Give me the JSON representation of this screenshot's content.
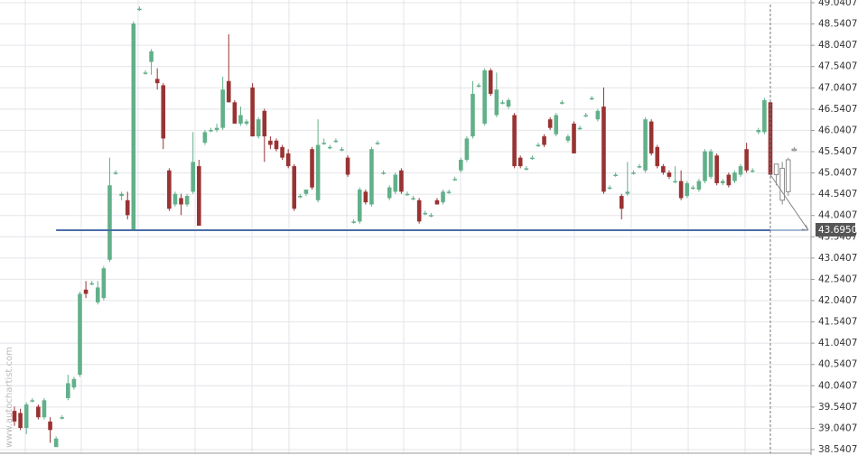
{
  "chart_data": {
    "type": "candlestick",
    "watermark": "www.autochartist.com",
    "up_color": "#62b08a",
    "down_color": "#993333",
    "forecast_color": "#8a8a8a",
    "support_color": "#4a6ea8",
    "ylim": [
      38.5407,
      49.0407
    ],
    "yticks": [
      38.5407,
      39.0407,
      39.5407,
      40.0407,
      40.5407,
      41.0407,
      41.5407,
      42.0407,
      42.5407,
      43.0407,
      43.5407,
      44.0407,
      44.5407,
      45.0407,
      45.5407,
      46.0407,
      46.5407,
      47.0407,
      47.5407,
      48.0407,
      48.5407,
      49.0407
    ],
    "grid": true,
    "support_level": {
      "value": 43.695,
      "label": "43.6950"
    },
    "candles": [
      [
        39.45,
        39.55,
        39.1,
        39.2
      ],
      [
        39.4,
        39.5,
        39.0,
        39.05
      ],
      [
        39.05,
        39.65,
        38.9,
        39.6
      ],
      [
        39.7,
        39.75,
        39.65,
        39.7
      ],
      [
        39.55,
        39.6,
        39.25,
        39.3
      ],
      [
        39.3,
        39.75,
        39.25,
        39.7
      ],
      [
        39.2,
        39.3,
        38.7,
        39.0
      ],
      [
        38.6,
        38.85,
        38.6,
        38.8
      ],
      [
        39.3,
        39.35,
        39.25,
        39.3
      ],
      [
        39.75,
        40.3,
        39.7,
        40.1
      ],
      [
        40.0,
        40.25,
        39.95,
        40.2
      ],
      [
        40.3,
        42.25,
        40.25,
        42.2
      ],
      [
        42.3,
        42.5,
        42.1,
        42.2
      ],
      [
        42.45,
        42.5,
        42.4,
        42.45
      ],
      [
        42.0,
        42.5,
        41.95,
        42.35
      ],
      [
        42.1,
        42.85,
        42.05,
        42.8
      ],
      [
        43.0,
        45.4,
        42.95,
        44.75
      ],
      [
        45.05,
        45.1,
        45.0,
        45.05
      ],
      [
        44.5,
        44.6,
        44.4,
        44.55
      ],
      [
        44.4,
        44.6,
        43.95,
        44.05
      ],
      [
        43.7,
        48.6,
        43.695,
        48.55
      ],
      [
        48.9,
        48.95,
        48.85,
        48.9
      ],
      [
        47.4,
        47.45,
        47.35,
        47.4
      ],
      [
        47.65,
        47.95,
        47.35,
        47.9
      ],
      [
        47.25,
        47.5,
        47.0,
        47.15
      ],
      [
        47.1,
        47.15,
        45.6,
        45.85
      ],
      [
        45.1,
        45.15,
        44.15,
        44.2
      ],
      [
        44.3,
        44.6,
        44.25,
        44.55
      ],
      [
        44.45,
        44.55,
        44.05,
        44.3
      ],
      [
        44.3,
        44.55,
        44.25,
        44.5
      ],
      [
        44.6,
        46.0,
        44.55,
        45.3
      ],
      [
        45.2,
        45.35,
        43.8,
        43.8
      ],
      [
        45.75,
        46.05,
        45.7,
        46.0
      ],
      [
        46.05,
        46.1,
        46.0,
        46.05
      ],
      [
        46.05,
        46.2,
        46.0,
        46.1
      ],
      [
        46.1,
        47.3,
        46.05,
        47.0
      ],
      [
        47.2,
        48.3,
        46.7,
        46.7
      ],
      [
        46.7,
        46.75,
        46.2,
        46.2
      ],
      [
        46.2,
        46.6,
        46.15,
        46.4
      ],
      [
        46.2,
        46.3,
        46.15,
        46.25
      ],
      [
        47.05,
        47.15,
        45.9,
        45.9
      ],
      [
        45.9,
        46.35,
        45.85,
        46.3
      ],
      [
        46.5,
        46.55,
        45.3,
        45.9
      ],
      [
        45.8,
        45.9,
        45.6,
        45.7
      ],
      [
        45.8,
        45.85,
        45.55,
        45.6
      ],
      [
        45.65,
        45.7,
        45.35,
        45.4
      ],
      [
        45.5,
        45.6,
        45.15,
        45.2
      ],
      [
        45.2,
        45.25,
        44.15,
        44.2
      ],
      [
        44.5,
        44.55,
        44.45,
        44.5
      ],
      [
        44.55,
        44.65,
        44.5,
        44.65
      ],
      [
        45.6,
        45.65,
        44.65,
        44.7
      ],
      [
        44.4,
        46.3,
        44.35,
        45.7
      ],
      [
        45.75,
        45.85,
        45.7,
        45.75
      ],
      [
        45.65,
        45.7,
        45.6,
        45.65
      ],
      [
        45.8,
        45.85,
        45.75,
        45.8
      ],
      [
        45.6,
        45.65,
        45.55,
        45.6
      ],
      [
        45.4,
        45.45,
        44.95,
        45.0
      ],
      [
        43.9,
        43.95,
        43.85,
        43.9
      ],
      [
        43.9,
        44.7,
        43.85,
        44.65
      ],
      [
        44.6,
        44.65,
        44.3,
        44.35
      ],
      [
        44.3,
        45.65,
        44.25,
        45.6
      ],
      [
        45.75,
        45.8,
        45.7,
        45.75
      ],
      [
        45.05,
        45.1,
        45.0,
        45.05
      ],
      [
        44.45,
        44.75,
        44.4,
        44.7
      ],
      [
        44.6,
        45.05,
        44.55,
        45.0
      ],
      [
        45.1,
        45.15,
        44.55,
        44.6
      ],
      [
        44.55,
        44.6,
        44.5,
        44.55
      ],
      [
        44.45,
        44.5,
        44.4,
        44.45
      ],
      [
        44.4,
        44.45,
        43.85,
        43.9
      ],
      [
        44.1,
        44.15,
        44.05,
        44.1
      ],
      [
        44.05,
        44.1,
        44.0,
        44.05
      ],
      [
        44.4,
        44.45,
        44.3,
        44.3
      ],
      [
        44.35,
        44.65,
        44.3,
        44.6
      ],
      [
        44.6,
        44.65,
        44.55,
        44.6
      ],
      [
        44.9,
        44.95,
        44.85,
        44.9
      ],
      [
        45.1,
        45.4,
        45.05,
        45.35
      ],
      [
        45.35,
        45.9,
        45.3,
        45.85
      ],
      [
        45.9,
        47.2,
        45.85,
        46.9
      ],
      [
        47.1,
        47.15,
        47.05,
        47.1
      ],
      [
        46.2,
        47.5,
        46.15,
        47.45
      ],
      [
        47.45,
        47.5,
        46.85,
        46.9
      ],
      [
        46.4,
        47.4,
        46.35,
        47.0
      ],
      [
        46.7,
        46.75,
        46.65,
        46.7
      ],
      [
        46.6,
        46.8,
        46.55,
        46.75
      ],
      [
        46.4,
        46.45,
        45.15,
        45.2
      ],
      [
        45.4,
        45.45,
        45.15,
        45.2
      ],
      [
        45.15,
        45.2,
        45.1,
        45.15
      ],
      [
        45.4,
        45.45,
        45.35,
        45.4
      ],
      [
        45.7,
        45.75,
        45.65,
        45.7
      ],
      [
        45.9,
        45.95,
        45.65,
        45.7
      ],
      [
        46.3,
        46.35,
        46.05,
        46.1
      ],
      [
        45.95,
        46.45,
        45.9,
        46.4
      ],
      [
        46.7,
        46.75,
        46.65,
        46.7
      ],
      [
        45.8,
        45.95,
        45.75,
        45.9
      ],
      [
        46.2,
        46.25,
        45.5,
        45.5
      ],
      [
        46.1,
        46.15,
        46.05,
        46.1
      ],
      [
        46.4,
        46.45,
        46.35,
        46.4
      ],
      [
        46.8,
        46.85,
        46.75,
        46.8
      ],
      [
        46.3,
        46.55,
        46.25,
        46.5
      ],
      [
        46.6,
        47.05,
        44.55,
        44.6
      ],
      [
        44.7,
        44.75,
        44.65,
        44.7
      ],
      [
        45.0,
        45.05,
        44.95,
        45.0
      ],
      [
        44.5,
        44.55,
        43.95,
        44.2
      ],
      [
        44.55,
        45.3,
        44.5,
        44.6
      ],
      [
        45.05,
        45.1,
        45.0,
        45.05
      ],
      [
        45.2,
        45.25,
        45.15,
        45.2
      ],
      [
        45.1,
        46.35,
        45.05,
        46.3
      ],
      [
        46.25,
        46.3,
        45.45,
        45.5
      ],
      [
        45.65,
        45.7,
        45.15,
        45.2
      ],
      [
        45.2,
        45.25,
        45.0,
        45.05
      ],
      [
        45.05,
        45.1,
        44.9,
        44.95
      ],
      [
        44.85,
        45.2,
        44.8,
        44.85
      ],
      [
        44.85,
        45.1,
        44.4,
        44.45
      ],
      [
        44.5,
        44.85,
        44.45,
        44.8
      ],
      [
        44.7,
        44.75,
        44.65,
        44.7
      ],
      [
        44.65,
        44.9,
        44.6,
        44.85
      ],
      [
        44.85,
        45.6,
        44.8,
        45.55
      ],
      [
        44.95,
        45.6,
        44.9,
        45.55
      ],
      [
        45.45,
        45.5,
        44.75,
        44.8
      ],
      [
        44.8,
        44.9,
        44.75,
        44.85
      ],
      [
        45.0,
        45.05,
        44.7,
        44.75
      ],
      [
        44.85,
        45.1,
        44.8,
        45.05
      ],
      [
        45.0,
        45.25,
        44.95,
        45.2
      ],
      [
        45.6,
        45.75,
        45.05,
        45.1
      ],
      [
        45.1,
        45.15,
        45.05,
        45.1
      ],
      [
        46.0,
        46.1,
        45.95,
        46.05
      ],
      [
        46.0,
        46.8,
        45.95,
        46.75
      ],
      [
        46.7,
        46.75,
        45.0,
        45.0
      ]
    ],
    "forecast_candles": [
      [
        45.0,
        45.25,
        44.75,
        45.25
      ],
      [
        45.15,
        45.3,
        44.3,
        44.4
      ],
      [
        44.6,
        45.4,
        44.5,
        45.35
      ],
      [
        45.6,
        45.65,
        45.55,
        45.6
      ]
    ]
  }
}
